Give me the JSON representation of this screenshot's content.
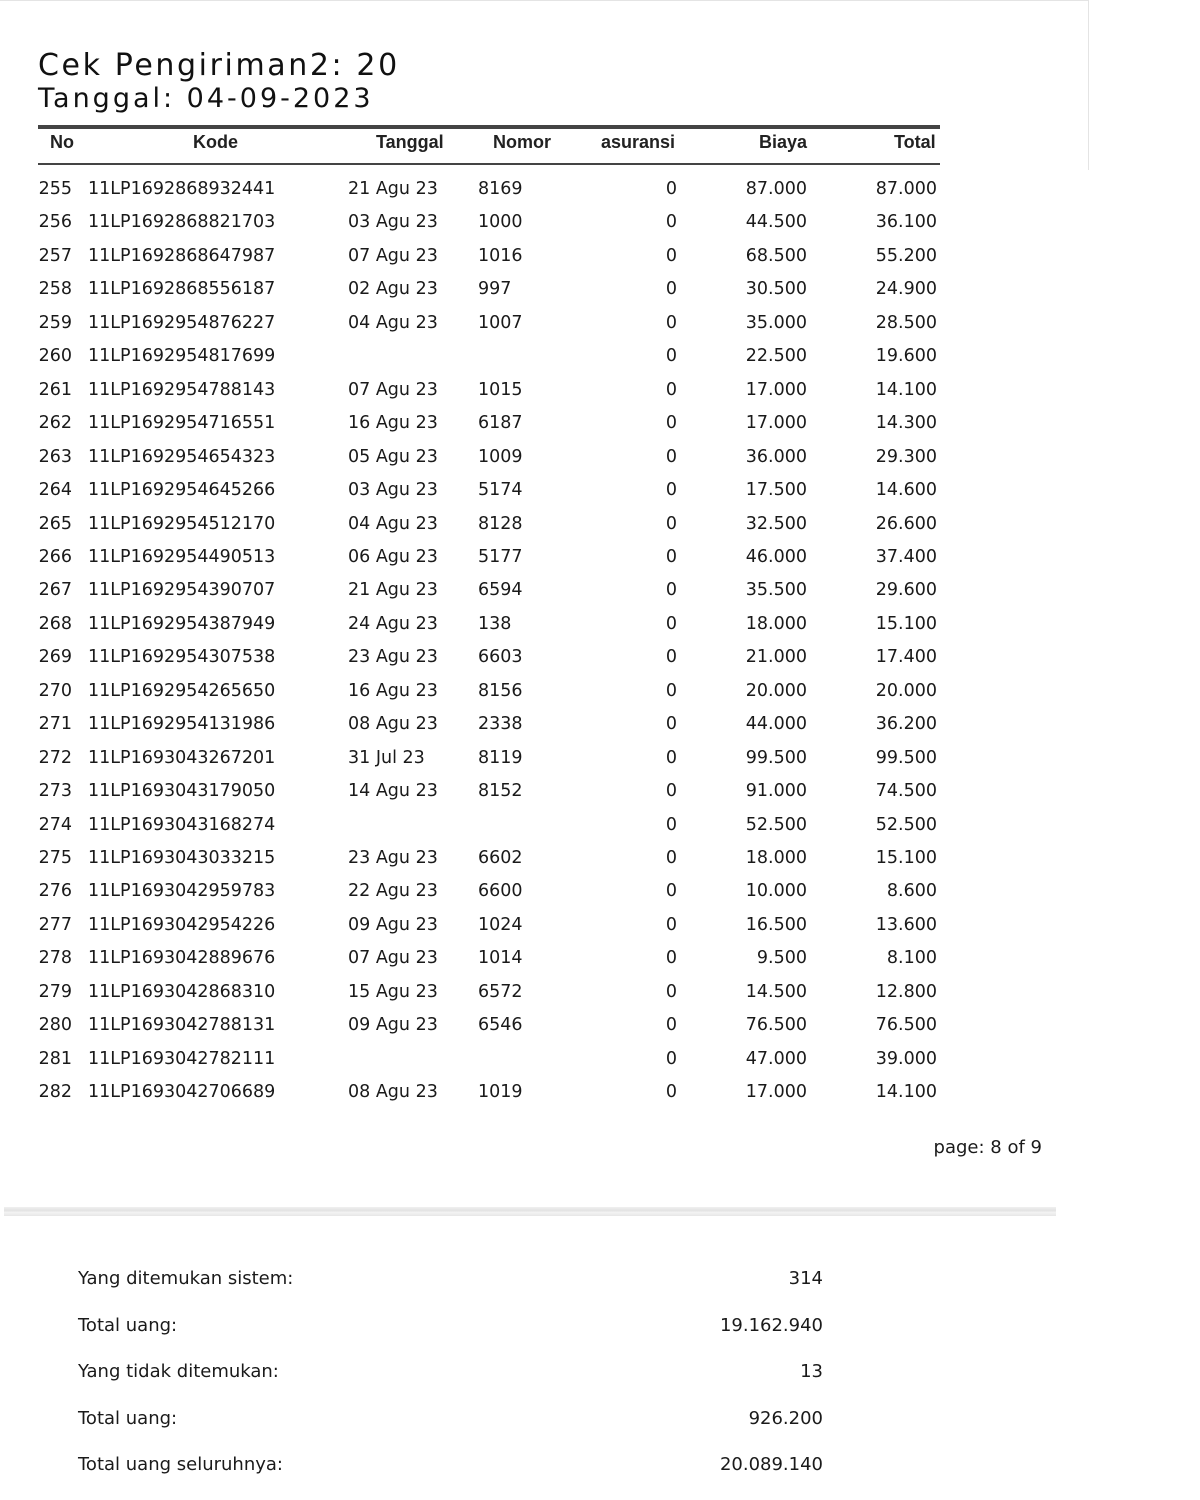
{
  "report": {
    "title": "Cek Pengiriman2: 20",
    "date_line": "Tanggal: 04-09-2023",
    "page_label": "page: 8 of 9"
  },
  "table": {
    "columns": [
      "No",
      "Kode",
      "Tanggal",
      "Nomor",
      "asuransi",
      "Biaya",
      "Total"
    ],
    "rows": [
      [
        "255",
        "11LP1692868932441",
        "21 Agu 23",
        "8169",
        "0",
        "87.000",
        "87.000"
      ],
      [
        "256",
        "11LP1692868821703",
        "03 Agu 23",
        "1000",
        "0",
        "44.500",
        "36.100"
      ],
      [
        "257",
        "11LP1692868647987",
        "07 Agu 23",
        "1016",
        "0",
        "68.500",
        "55.200"
      ],
      [
        "258",
        "11LP1692868556187",
        "02 Agu 23",
        "997",
        "0",
        "30.500",
        "24.900"
      ],
      [
        "259",
        "11LP1692954876227",
        "04 Agu 23",
        "1007",
        "0",
        "35.000",
        "28.500"
      ],
      [
        "260",
        "11LP1692954817699",
        "",
        "",
        "0",
        "22.500",
        "19.600"
      ],
      [
        "261",
        "11LP1692954788143",
        "07 Agu 23",
        "1015",
        "0",
        "17.000",
        "14.100"
      ],
      [
        "262",
        "11LP1692954716551",
        "16 Agu 23",
        "6187",
        "0",
        "17.000",
        "14.300"
      ],
      [
        "263",
        "11LP1692954654323",
        "05 Agu 23",
        "1009",
        "0",
        "36.000",
        "29.300"
      ],
      [
        "264",
        "11LP1692954645266",
        "03 Agu 23",
        "5174",
        "0",
        "17.500",
        "14.600"
      ],
      [
        "265",
        "11LP1692954512170",
        "04 Agu 23",
        "8128",
        "0",
        "32.500",
        "26.600"
      ],
      [
        "266",
        "11LP1692954490513",
        "06 Agu 23",
        "5177",
        "0",
        "46.000",
        "37.400"
      ],
      [
        "267",
        "11LP1692954390707",
        "21 Agu 23",
        "6594",
        "0",
        "35.500",
        "29.600"
      ],
      [
        "268",
        "11LP1692954387949",
        "24 Agu 23",
        "138",
        "0",
        "18.000",
        "15.100"
      ],
      [
        "269",
        "11LP1692954307538",
        "23 Agu 23",
        "6603",
        "0",
        "21.000",
        "17.400"
      ],
      [
        "270",
        "11LP1692954265650",
        "16 Agu 23",
        "8156",
        "0",
        "20.000",
        "20.000"
      ],
      [
        "271",
        "11LP1692954131986",
        "08 Agu 23",
        "2338",
        "0",
        "44.000",
        "36.200"
      ],
      [
        "272",
        "11LP1693043267201",
        "31 Jul 23",
        "8119",
        "0",
        "99.500",
        "99.500"
      ],
      [
        "273",
        "11LP1693043179050",
        "14 Agu 23",
        "8152",
        "0",
        "91.000",
        "74.500"
      ],
      [
        "274",
        "11LP1693043168274",
        "",
        "",
        "0",
        "52.500",
        "52.500"
      ],
      [
        "275",
        "11LP1693043033215",
        "23 Agu 23",
        "6602",
        "0",
        "18.000",
        "15.100"
      ],
      [
        "276",
        "11LP1693042959783",
        "22 Agu 23",
        "6600",
        "0",
        "10.000",
        "8.600"
      ],
      [
        "277",
        "11LP1693042954226",
        "09 Agu 23",
        "1024",
        "0",
        "16.500",
        "13.600"
      ],
      [
        "278",
        "11LP1693042889676",
        "07 Agu 23",
        "1014",
        "0",
        "9.500",
        "8.100"
      ],
      [
        "279",
        "11LP1693042868310",
        "15 Agu 23",
        "6572",
        "0",
        "14.500",
        "12.800"
      ],
      [
        "280",
        "11LP1693042788131",
        "09 Agu 23",
        "6546",
        "0",
        "76.500",
        "76.500"
      ],
      [
        "281",
        "11LP1693042782111",
        "",
        "",
        "0",
        "47.000",
        "39.000"
      ],
      [
        "282",
        "11LP1693042706689",
        "08 Agu 23",
        "1019",
        "0",
        "17.000",
        "14.100"
      ]
    ]
  },
  "summary": [
    {
      "label": "Yang ditemukan sistem:",
      "value": "314"
    },
    {
      "label": "Total uang:",
      "value": "19.162.940"
    },
    {
      "label": "Yang tidak ditemukan:",
      "value": "13"
    },
    {
      "label": "Total uang:",
      "value": "926.200"
    },
    {
      "label": "Total uang seluruhnya:",
      "value": "20.089.140"
    }
  ]
}
